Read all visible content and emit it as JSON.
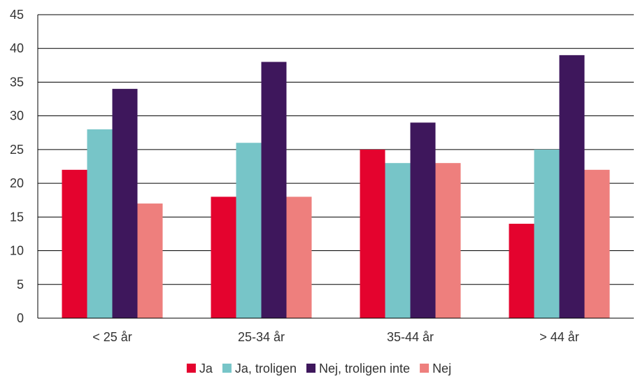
{
  "chart_data": {
    "type": "bar",
    "categories": [
      "< 25 år",
      "25-34 år",
      "35-44 år",
      "> 44 år"
    ],
    "series": [
      {
        "name": "Ja",
        "color": "#e4032e",
        "values": [
          22,
          18,
          25,
          14
        ]
      },
      {
        "name": "Ja, troligen",
        "color": "#77c5c8",
        "values": [
          28,
          26,
          23,
          25
        ]
      },
      {
        "name": "Nej, troligen inte",
        "color": "#3e175c",
        "values": [
          34,
          38,
          29,
          39
        ]
      },
      {
        "name": "Nej",
        "color": "#ee7f7d",
        "values": [
          17,
          18,
          23,
          22
        ]
      }
    ],
    "ylim": [
      0,
      45
    ],
    "yticks": [
      0,
      5,
      10,
      15,
      20,
      25,
      30,
      35,
      40,
      45
    ],
    "grid": true,
    "legend": "bottom"
  }
}
